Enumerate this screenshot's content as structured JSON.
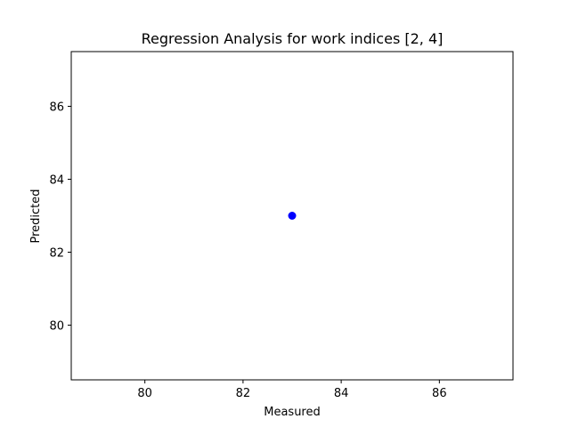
{
  "chart_data": {
    "type": "scatter",
    "title": "Regression Analysis for work indices [2, 4]",
    "xlabel": "Measured",
    "ylabel": "Predicted",
    "xlim": [
      78.5,
      87.5
    ],
    "ylim": [
      78.5,
      87.5
    ],
    "xticks": [
      80,
      82,
      84,
      86
    ],
    "yticks": [
      80,
      82,
      84,
      86
    ],
    "grid": false,
    "series": [
      {
        "points": [
          {
            "x": 83,
            "y": 83
          }
        ],
        "color": "#0000ff",
        "marker": "circle"
      }
    ]
  }
}
